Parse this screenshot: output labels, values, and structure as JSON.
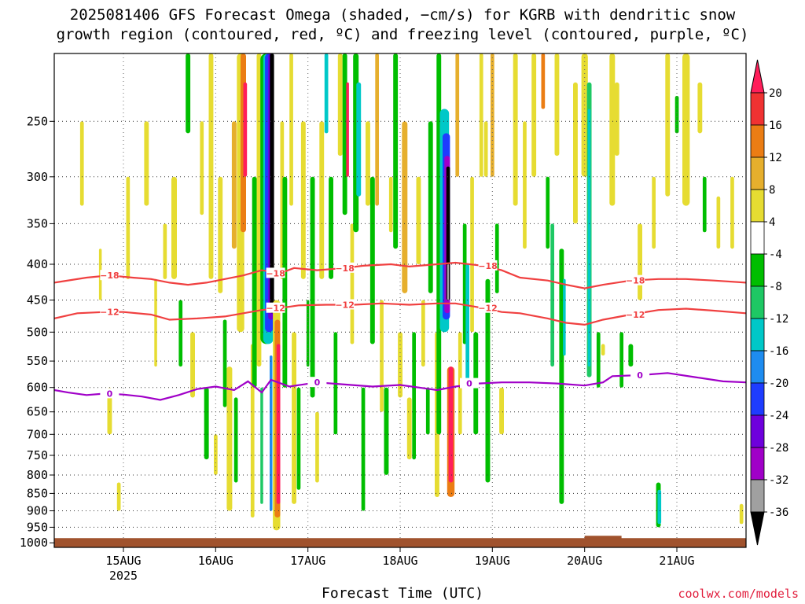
{
  "title_line1": "2025081406 GFS Forecast Omega (shaded, −cm/s) for KGRB with dendritic snow",
  "title_line2": "growth region (contoured, red, ºC) and freezing level (contoured, purple, ºC)",
  "xlabel": "Forecast Time (UTC)",
  "credit": "coolwx.com/models",
  "chart_data": {
    "type": "heatmap",
    "title": "2025081406 GFS Forecast Omega (shaded, −cm/s) for KGRB with dendritic snow growth region (contoured, red, ºC) and freezing level (contoured, purple, ºC)",
    "xlabel": "Forecast Time (UTC)",
    "ylabel": "",
    "x_range_days": [
      "2025-08-14 06Z",
      "2025-08-21 21Z"
    ],
    "x_ticks": [
      {
        "label": "15AUG",
        "sub": "2025",
        "day": 15
      },
      {
        "label": "16AUG",
        "sub": "",
        "day": 16
      },
      {
        "label": "17AUG",
        "sub": "",
        "day": 17
      },
      {
        "label": "18AUG",
        "sub": "",
        "day": 18
      },
      {
        "label": "19AUG",
        "sub": "",
        "day": 19
      },
      {
        "label": "20AUG",
        "sub": "",
        "day": 20
      },
      {
        "label": "21AUG",
        "sub": "",
        "day": 21
      }
    ],
    "y_ticks": [
      250,
      300,
      350,
      400,
      450,
      500,
      550,
      600,
      650,
      700,
      750,
      800,
      850,
      900,
      950,
      1000
    ],
    "y_range_hpa": [
      200,
      1015
    ],
    "y_scale": "log",
    "grid": true,
    "colorbar": {
      "labels": [
        "20",
        "16",
        "12",
        "8",
        "4",
        "-4",
        "-8",
        "-12",
        "-16",
        "-20",
        "-24",
        "-28",
        "-32",
        "-36"
      ],
      "colors": [
        "#ff1e5a",
        "#f03232",
        "#eb7d14",
        "#e6af2d",
        "#e6dc32",
        "#ffffff",
        "#00be00",
        "#1ec864",
        "#00c8c8",
        "#1e8cf0",
        "#1e3cff",
        "#6e00dc",
        "#a000c8",
        "#a0a0a0",
        "#000000"
      ]
    },
    "contours": [
      {
        "name": "-18",
        "color": "#f04040",
        "label": "−18",
        "points": [
          [
            14.25,
            425
          ],
          [
            14.6,
            418
          ],
          [
            14.85,
            415
          ],
          [
            15.1,
            418
          ],
          [
            15.3,
            420
          ],
          [
            15.5,
            425
          ],
          [
            15.7,
            428
          ],
          [
            15.9,
            425
          ],
          [
            16.1,
            420
          ],
          [
            16.3,
            415
          ],
          [
            16.5,
            408
          ],
          [
            16.7,
            412
          ],
          [
            16.85,
            405
          ],
          [
            17.1,
            408
          ],
          [
            17.4,
            405
          ],
          [
            17.6,
            402
          ],
          [
            17.9,
            400
          ],
          [
            18.1,
            403
          ],
          [
            18.4,
            400
          ],
          [
            18.6,
            398
          ],
          [
            18.9,
            402
          ],
          [
            19.1,
            408
          ],
          [
            19.3,
            418
          ],
          [
            19.6,
            422
          ],
          [
            19.8,
            428
          ],
          [
            20.0,
            433
          ],
          [
            20.2,
            428
          ],
          [
            20.5,
            422
          ],
          [
            20.8,
            420
          ],
          [
            21.1,
            420
          ],
          [
            21.4,
            422
          ],
          [
            21.75,
            425
          ]
        ]
      },
      {
        "name": "-12",
        "color": "#f04040",
        "label": "−12",
        "points": [
          [
            14.25,
            478
          ],
          [
            14.5,
            470
          ],
          [
            14.8,
            468
          ],
          [
            15.0,
            468
          ],
          [
            15.3,
            472
          ],
          [
            15.5,
            480
          ],
          [
            15.8,
            478
          ],
          [
            16.1,
            475
          ],
          [
            16.3,
            470
          ],
          [
            16.5,
            465
          ],
          [
            16.7,
            462
          ],
          [
            16.9,
            458
          ],
          [
            17.2,
            457
          ],
          [
            17.5,
            457
          ],
          [
            17.8,
            455
          ],
          [
            18.1,
            457
          ],
          [
            18.4,
            455
          ],
          [
            18.6,
            455
          ],
          [
            18.9,
            462
          ],
          [
            19.1,
            468
          ],
          [
            19.3,
            470
          ],
          [
            19.6,
            478
          ],
          [
            19.8,
            485
          ],
          [
            20.0,
            488
          ],
          [
            20.2,
            480
          ],
          [
            20.5,
            472
          ],
          [
            20.8,
            465
          ],
          [
            21.1,
            463
          ],
          [
            21.4,
            466
          ],
          [
            21.75,
            470
          ]
        ]
      },
      {
        "name": "0",
        "color": "#a000c8",
        "label": "0",
        "points": [
          [
            14.25,
            605
          ],
          [
            14.4,
            610
          ],
          [
            14.6,
            615
          ],
          [
            14.8,
            612
          ],
          [
            15.0,
            614
          ],
          [
            15.2,
            618
          ],
          [
            15.4,
            625
          ],
          [
            15.6,
            615
          ],
          [
            15.8,
            603
          ],
          [
            16.0,
            598
          ],
          [
            16.2,
            605
          ],
          [
            16.35,
            588
          ],
          [
            16.5,
            610
          ],
          [
            16.6,
            585
          ],
          [
            16.8,
            598
          ],
          [
            17.1,
            590
          ],
          [
            17.4,
            594
          ],
          [
            17.7,
            598
          ],
          [
            18.0,
            595
          ],
          [
            18.2,
            600
          ],
          [
            18.4,
            605
          ],
          [
            18.6,
            598
          ],
          [
            18.85,
            592
          ],
          [
            19.1,
            590
          ],
          [
            19.4,
            590
          ],
          [
            19.7,
            592
          ],
          [
            20.0,
            596
          ],
          [
            20.2,
            590
          ],
          [
            20.3,
            578
          ],
          [
            20.6,
            576
          ],
          [
            20.9,
            572
          ],
          [
            21.2,
            580
          ],
          [
            21.5,
            588
          ],
          [
            21.75,
            590
          ]
        ]
      }
    ],
    "omega_features": [
      {
        "day": 16.6,
        "p_top": 200,
        "p_bot": 480,
        "value": -36,
        "note": "strong ascent core"
      },
      {
        "day": 18.5,
        "p_top": 290,
        "p_bot": 460,
        "value": -36,
        "note": "strong ascent core"
      },
      {
        "day": 16.3,
        "p_top": 200,
        "p_bot": 400,
        "value": 20,
        "note": "descent"
      },
      {
        "day": 16.65,
        "p_top": 480,
        "p_bot": 950,
        "value": 20,
        "note": "descent"
      },
      {
        "day": 18.5,
        "p_top": 540,
        "p_bot": 850,
        "value": 20,
        "note": "descent"
      }
    ]
  }
}
